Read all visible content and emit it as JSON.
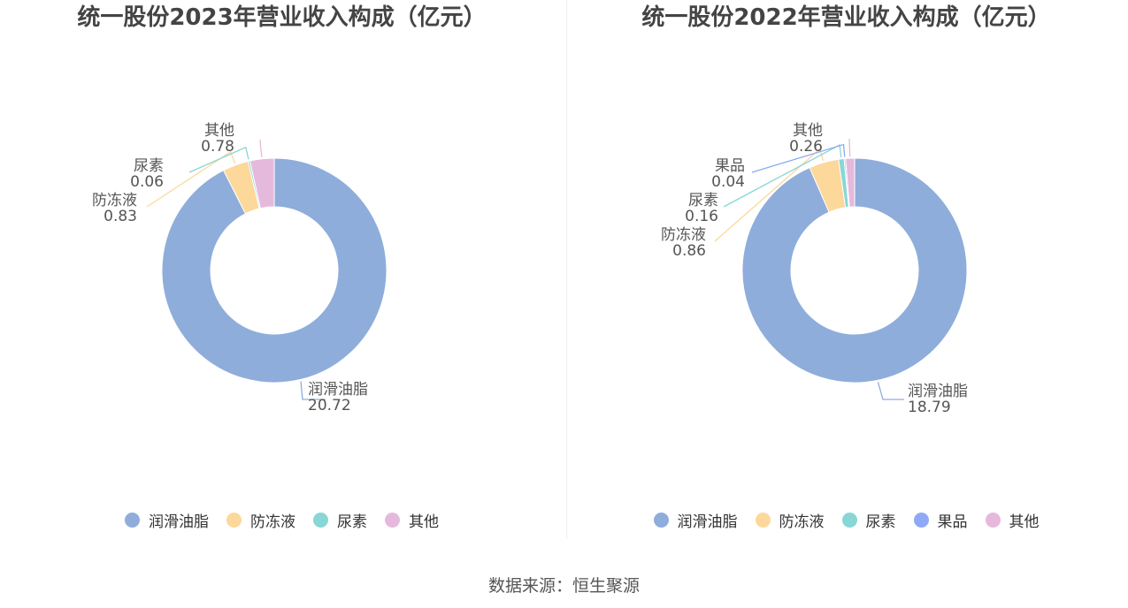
{
  "charts": [
    {
      "title": "统一股份2023年营业收入构成（亿元）"
    },
    {
      "title": "统一股份2022年营业收入构成（亿元）"
    }
  ],
  "source": "数据来源：恒生聚源",
  "chart_data": [
    {
      "type": "pie",
      "style": "donut",
      "title": "统一股份2023年营业收入构成（亿元）",
      "slices": [
        {
          "name": "润滑油脂",
          "value": 20.72,
          "label": "20.72",
          "color": "#8EADDB"
        },
        {
          "name": "防冻液",
          "value": 0.83,
          "label": "0.83",
          "color": "#FCD89A"
        },
        {
          "name": "尿素",
          "value": 0.06,
          "label": "0.06",
          "color": "#88D6D6"
        },
        {
          "name": "其他",
          "value": 0.78,
          "label": "0.78",
          "color": "#E5B9DC"
        }
      ],
      "legend": [
        "润滑油脂",
        "防冻液",
        "尿素",
        "其他"
      ],
      "legend_position": "bottom"
    },
    {
      "type": "pie",
      "style": "donut",
      "title": "统一股份2022年营业收入构成（亿元）",
      "slices": [
        {
          "name": "润滑油脂",
          "value": 18.79,
          "label": "18.79",
          "color": "#8EADDB"
        },
        {
          "name": "防冻液",
          "value": 0.86,
          "label": "0.86",
          "color": "#FCD89A"
        },
        {
          "name": "尿素",
          "value": 0.16,
          "label": "0.16",
          "color": "#88D6D6"
        },
        {
          "name": "果品",
          "value": 0.04,
          "label": "0.04",
          "color": "#8EA9F5"
        },
        {
          "name": "其他",
          "value": 0.26,
          "label": "0.26",
          "color": "#E5B9DC"
        }
      ],
      "legend": [
        "润滑油脂",
        "防冻液",
        "尿素",
        "果品",
        "其他"
      ],
      "legend_position": "bottom"
    }
  ]
}
